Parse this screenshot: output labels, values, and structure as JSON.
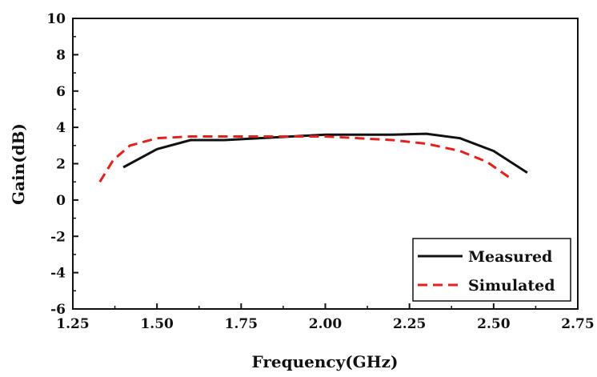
{
  "chart_data": {
    "type": "line",
    "title": "",
    "xlabel": "Frequency(GHz)",
    "ylabel": "Gain(dB)",
    "xlim": [
      1.25,
      2.75
    ],
    "ylim": [
      -6,
      10
    ],
    "x_ticks": [
      "1.25",
      "1.50",
      "1.75",
      "2.00",
      "2.25",
      "2.50",
      "2.75"
    ],
    "y_ticks": [
      "-6",
      "-4",
      "-2",
      "0",
      "2",
      "4",
      "6",
      "8",
      "10"
    ],
    "grid": false,
    "legend_position": "bottom-right",
    "series": [
      {
        "name": "Measured",
        "color": "#111111",
        "style": "solid",
        "x": [
          1.4,
          1.5,
          1.6,
          1.7,
          1.8,
          1.9,
          2.0,
          2.1,
          2.2,
          2.3,
          2.4,
          2.5,
          2.6
        ],
        "y": [
          1.8,
          2.8,
          3.3,
          3.3,
          3.4,
          3.5,
          3.6,
          3.6,
          3.6,
          3.65,
          3.4,
          2.7,
          1.5
        ]
      },
      {
        "name": "Simulated",
        "color": "#e0211d",
        "style": "dashed",
        "x": [
          1.33,
          1.37,
          1.42,
          1.5,
          1.6,
          1.7,
          1.8,
          1.9,
          2.0,
          2.1,
          2.2,
          2.3,
          2.4,
          2.48,
          2.55
        ],
        "y": [
          1.0,
          2.2,
          3.0,
          3.4,
          3.5,
          3.5,
          3.5,
          3.5,
          3.5,
          3.4,
          3.3,
          3.1,
          2.7,
          2.1,
          1.2
        ]
      }
    ]
  }
}
